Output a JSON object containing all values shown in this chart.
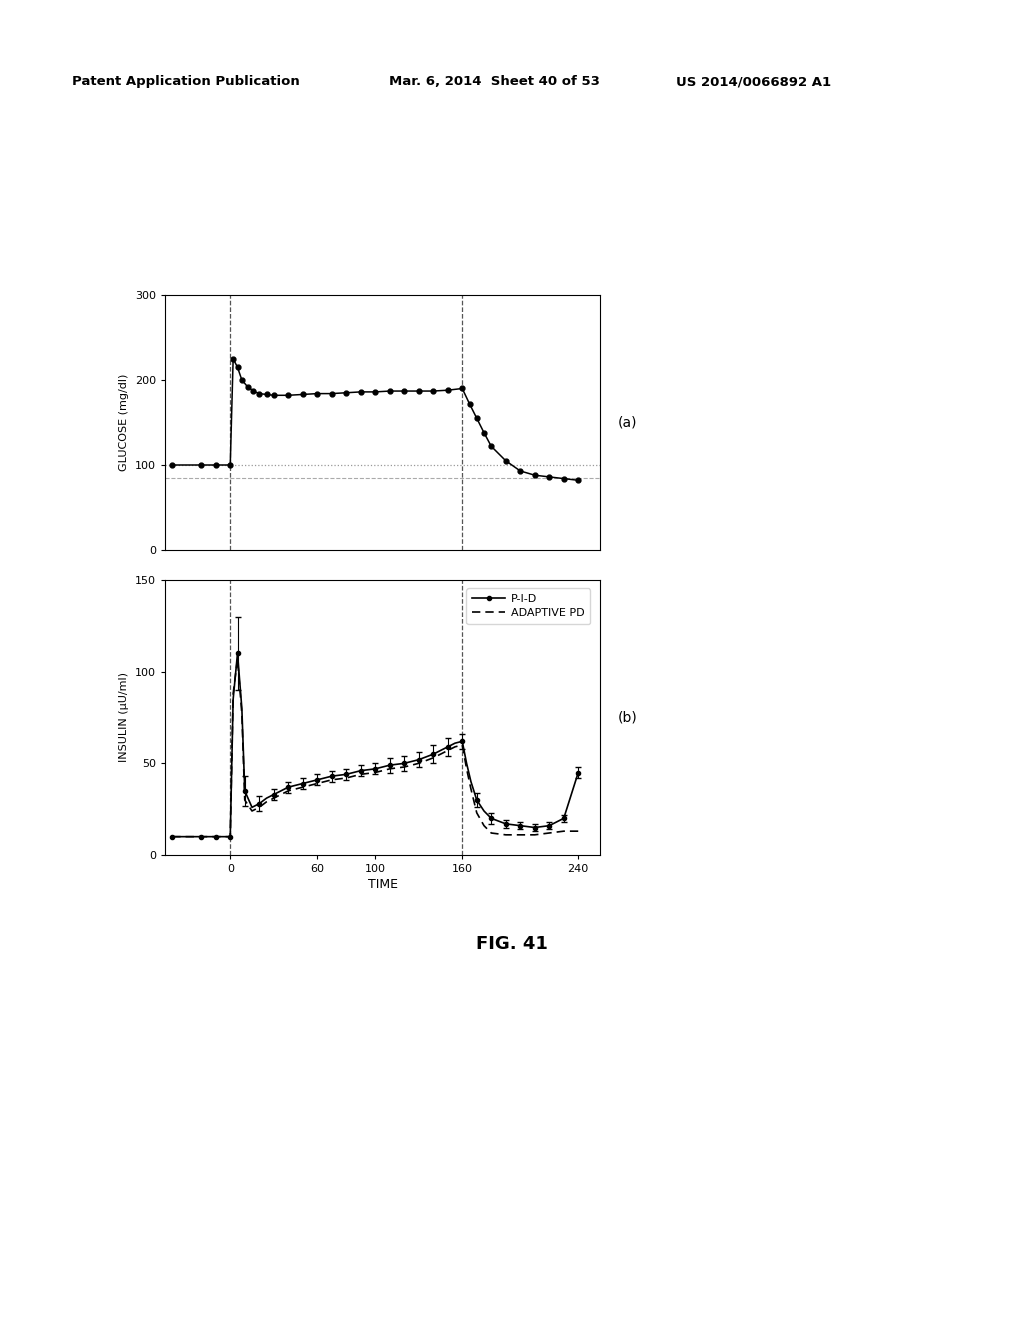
{
  "header_left": "Patent Application Publication",
  "header_mid": "Mar. 6, 2014  Sheet 40 of 53",
  "header_right": "US 2014/0066892 A1",
  "fig_label": "FIG. 41",
  "subplot_a_label": "(a)",
  "subplot_b_label": "(b)",
  "xlabel": "TIME",
  "ylabel_a": "GLUCOSE (mg/dl)",
  "ylabel_b": "INSULIN (μU/ml)",
  "xlim": [
    -45,
    255
  ],
  "ylim_a": [
    0,
    300
  ],
  "ylim_b": [
    0,
    150
  ],
  "xticks": [
    0,
    60,
    100,
    160,
    240
  ],
  "yticks_a": [
    0,
    100,
    200,
    300
  ],
  "yticks_b": [
    0,
    50,
    100,
    150
  ],
  "vlines": [
    0,
    160
  ],
  "hlines_a": [
    100,
    85
  ],
  "legend_b": [
    "P-I-D",
    "ADAPTIVE PD"
  ],
  "glucose_x": [
    -40,
    -20,
    -10,
    0,
    2,
    5,
    8,
    12,
    16,
    20,
    25,
    30,
    40,
    50,
    60,
    70,
    80,
    90,
    100,
    110,
    120,
    130,
    140,
    150,
    160,
    165,
    170,
    175,
    180,
    190,
    200,
    210,
    220,
    230,
    240
  ],
  "glucose_y": [
    100,
    100,
    100,
    100,
    225,
    215,
    200,
    192,
    187,
    184,
    183,
    182,
    182,
    183,
    184,
    184,
    185,
    186,
    186,
    187,
    187,
    187,
    187,
    188,
    190,
    172,
    155,
    138,
    122,
    105,
    93,
    88,
    86,
    84,
    82
  ],
  "pid_x": [
    -40,
    -20,
    -10,
    -5,
    0,
    2,
    5,
    8,
    10,
    15,
    20,
    25,
    30,
    35,
    40,
    50,
    60,
    70,
    80,
    90,
    100,
    110,
    120,
    130,
    140,
    150,
    155,
    160,
    163,
    166,
    170,
    175,
    180,
    190,
    200,
    210,
    220,
    230,
    240
  ],
  "pid_y": [
    10,
    10,
    10,
    10,
    10,
    85,
    110,
    80,
    35,
    26,
    28,
    31,
    33,
    35,
    37,
    39,
    41,
    43,
    44,
    46,
    47,
    49,
    50,
    52,
    55,
    59,
    61,
    62,
    50,
    40,
    30,
    24,
    20,
    17,
    16,
    15,
    16,
    20,
    45
  ],
  "pid_dots_x": [
    -40,
    -20,
    -10,
    0,
    5,
    10,
    20,
    30,
    40,
    50,
    60,
    70,
    80,
    90,
    100,
    110,
    120,
    130,
    140,
    150,
    160,
    170,
    180,
    190,
    200,
    210,
    220,
    230,
    240
  ],
  "pid_dots_y": [
    10,
    10,
    10,
    10,
    110,
    35,
    28,
    33,
    37,
    39,
    41,
    43,
    44,
    46,
    47,
    49,
    50,
    52,
    55,
    59,
    62,
    30,
    20,
    17,
    16,
    15,
    16,
    20,
    45
  ],
  "pid_err_x": [
    5,
    10,
    20,
    30,
    40,
    50,
    60,
    70,
    80,
    90,
    100,
    110,
    120,
    130,
    140,
    150,
    160,
    170,
    180,
    190,
    200,
    210,
    220,
    230,
    240
  ],
  "pid_err_y": [
    110,
    35,
    28,
    33,
    37,
    39,
    41,
    43,
    44,
    46,
    47,
    49,
    50,
    52,
    55,
    59,
    62,
    30,
    20,
    17,
    16,
    15,
    16,
    20,
    45
  ],
  "pid_err": [
    20,
    8,
    4,
    3,
    3,
    3,
    3,
    3,
    3,
    3,
    3,
    4,
    4,
    4,
    5,
    5,
    4,
    4,
    3,
    2,
    2,
    2,
    2,
    2,
    3
  ],
  "apd_x": [
    -40,
    -20,
    -10,
    -5,
    0,
    2,
    5,
    8,
    10,
    15,
    20,
    25,
    30,
    35,
    40,
    50,
    60,
    70,
    80,
    90,
    100,
    110,
    120,
    130,
    140,
    150,
    155,
    160,
    163,
    166,
    170,
    175,
    180,
    190,
    200,
    210,
    220,
    230,
    240
  ],
  "apd_y": [
    10,
    10,
    10,
    10,
    10,
    88,
    107,
    77,
    30,
    24,
    26,
    29,
    31,
    33,
    35,
    37,
    39,
    41,
    42,
    44,
    45,
    47,
    48,
    50,
    53,
    57,
    59,
    60,
    47,
    36,
    23,
    16,
    12,
    11,
    11,
    11,
    12,
    13,
    13
  ],
  "background_color": "#ffffff",
  "line_color": "#000000",
  "ref_line_color_100": "#aaaaaa",
  "ref_line_color_85": "#aaaaaa"
}
